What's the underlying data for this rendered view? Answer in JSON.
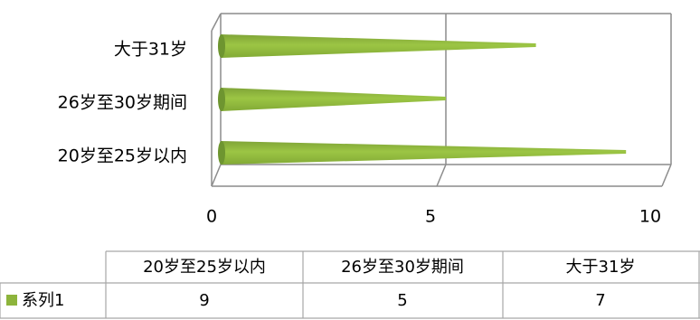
{
  "chart_data": {
    "type": "bar",
    "orientation": "horizontal",
    "categories": [
      "20岁至25岁以内",
      "26岁至30岁期间",
      "大于31岁"
    ],
    "series": [
      {
        "name": "系列1",
        "values": [
          9,
          5,
          7
        ],
        "color": "#8DB43C"
      }
    ],
    "xlim": [
      0,
      10
    ],
    "xticks": [
      0,
      5,
      10
    ],
    "grid": true,
    "data_table": true,
    "legend": "data-table"
  }
}
